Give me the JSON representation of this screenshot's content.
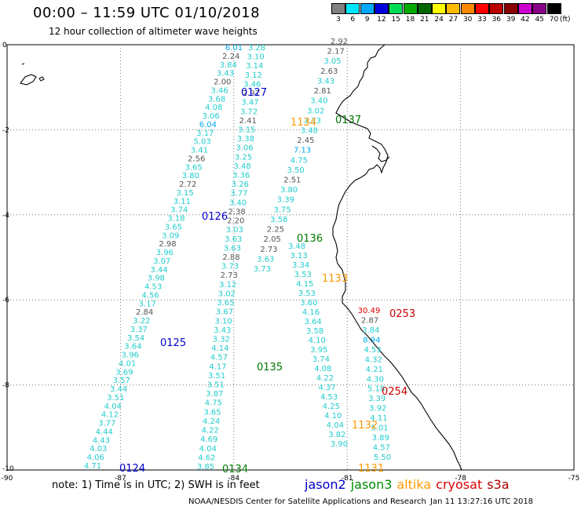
{
  "header": {
    "title": "00:00 – 11:59 UTC 01/10/2018",
    "subtitle": "12 hour collection of altimeter wave heights"
  },
  "colorbar": {
    "unit": "(ft)",
    "bins": [
      {
        "label": "3",
        "color": "#808080"
      },
      {
        "label": "6",
        "color": "#00e5ff"
      },
      {
        "label": "9",
        "color": "#00aaff"
      },
      {
        "label": "12",
        "color": "#0000dd"
      },
      {
        "label": "15",
        "color": "#00dd55"
      },
      {
        "label": "18",
        "color": "#00aa00"
      },
      {
        "label": "21",
        "color": "#006600"
      },
      {
        "label": "24",
        "color": "#ffff00"
      },
      {
        "label": "27",
        "color": "#ffbb00"
      },
      {
        "label": "30",
        "color": "#ff8800"
      },
      {
        "label": "33",
        "color": "#ff0000"
      },
      {
        "label": "36",
        "color": "#bb0000"
      },
      {
        "label": "39",
        "color": "#880000"
      },
      {
        "label": "42",
        "color": "#cc00cc"
      },
      {
        "label": "45",
        "color": "#880088"
      },
      {
        "label": "70",
        "color": "#000000"
      }
    ]
  },
  "map": {
    "lat_ticks": [
      "0",
      "-2",
      "-4",
      "-6",
      "-8",
      "-10"
    ],
    "lon_ticks": [
      "-90",
      "-87",
      "-84",
      "-81",
      "-78",
      "-75"
    ],
    "lat_range": [
      -10,
      0
    ],
    "lon_range": [
      -90,
      -75
    ],
    "grid": "dotted"
  },
  "passes": [
    {
      "label": "0127",
      "color": "#0000cc"
    },
    {
      "label": "1134",
      "color": "#ff9900"
    },
    {
      "label": "0137",
      "color": "#007700"
    },
    {
      "label": "0126",
      "color": "#0000cc"
    },
    {
      "label": "0136",
      "color": "#007700"
    },
    {
      "label": "1133",
      "color": "#ff9900"
    },
    {
      "label": "0253",
      "color": "#cc0000"
    },
    {
      "label": "0125",
      "color": "#0000cc"
    },
    {
      "label": "0135",
      "color": "#007700"
    },
    {
      "label": "0254",
      "color": "#cc0000"
    },
    {
      "label": "1132",
      "color": "#ff9900"
    },
    {
      "label": "0124",
      "color": "#0000cc"
    },
    {
      "label": "0134",
      "color": "#007700"
    },
    {
      "label": "1131",
      "color": "#ff9900"
    }
  ],
  "tracks": [
    {
      "name": "track-a",
      "values": [
        "3.28",
        "3.10",
        "3.14",
        "3.12",
        "3.46",
        "2.97",
        "3.47",
        "3.72",
        "2.41",
        "3.15",
        "3.38",
        "3.06",
        "3.25",
        "3.48",
        "3.36",
        "3.26",
        "3.77",
        "3.40",
        "2.38",
        "2.20",
        "3.03",
        "3.63",
        "3.63",
        "2.88",
        "3.73",
        "2.73",
        "3.12",
        "3.02",
        "3.65",
        "3.67",
        "3.10",
        "3.43",
        "3.32",
        "4.14",
        "4.57",
        "4.17",
        "3.51",
        "3.51",
        "3.87",
        "4.75",
        "3.65",
        "4.24",
        "4.22",
        "4.69",
        "4.04",
        "4.62",
        "3.85"
      ]
    },
    {
      "name": "track-b",
      "values": [
        "6.01",
        "2.24",
        "3.84",
        "3.43",
        "2.00",
        "3.46",
        "3.68",
        "4.08",
        "3.06",
        "6.04",
        "3.17",
        "5.03",
        "3.41",
        "2.56",
        "3.65",
        "3.80",
        "2.72",
        "3.15",
        "3.11",
        "3.74",
        "3.18",
        "3.65",
        "3.09",
        "2.98",
        "3.96",
        "3.07",
        "3.44",
        "3.98",
        "4.53",
        "4.56",
        "3.17",
        "2.84",
        "3.22",
        "3.37",
        "3.54",
        "3.64",
        "3.96",
        "4.01",
        "3.69",
        "3.57",
        "3.44",
        "3.51",
        "4.04",
        "4.12",
        "3.77",
        "4.44",
        "4.43",
        "4.03",
        "4.06",
        "4.71"
      ]
    },
    {
      "name": "track-c",
      "values": [
        "2.92",
        "2.17",
        "3.05",
        "2.63",
        "3.43",
        "2.81",
        "3.40",
        "3.02",
        "3.73",
        "3.48",
        "2.45",
        "7.13",
        "4.75",
        "3.50",
        "2.51",
        "3.80",
        "3.39",
        "3.75",
        "3.58",
        "2.25",
        "2.05",
        "2.73",
        "3.63",
        "3.73"
      ]
    },
    {
      "name": "track-d",
      "values": [
        "3.48",
        "3.13",
        "3.34",
        "3.53",
        "4.15",
        "3.53",
        "3.60",
        "4.16",
        "3.64",
        "3.58",
        "4.10",
        "3.95",
        "3.74",
        "4.08",
        "4.22",
        "4.37",
        "4.53",
        "4.25",
        "4.10",
        "4.04",
        "3.82",
        "3.90"
      ]
    },
    {
      "name": "track-e",
      "values": [
        "30.49",
        "2.87",
        "3.84",
        "8.94",
        "4.53",
        "4.32",
        "4.21",
        "4.30",
        "5.18",
        "3.39",
        "3.92",
        "4.11",
        "5.01",
        "3.89",
        "4.57",
        "5.50"
      ]
    }
  ],
  "footer": {
    "note": "note: 1) Time is in UTC; 2) SWH is in feet",
    "legend": [
      {
        "label": "jason2",
        "color": "#0000cc"
      },
      {
        "label": "jason3",
        "color": "#008800"
      },
      {
        "label": "altika",
        "color": "#ff9900"
      },
      {
        "label": "cryosat",
        "color": "#dd0000"
      },
      {
        "label": "s3a",
        "color": "#aa0000"
      }
    ],
    "credit": "NOAA/NESDIS Center for Satellite Applications and Research",
    "timestamp": "Jan 11 13:27:16 UTC 2018"
  }
}
